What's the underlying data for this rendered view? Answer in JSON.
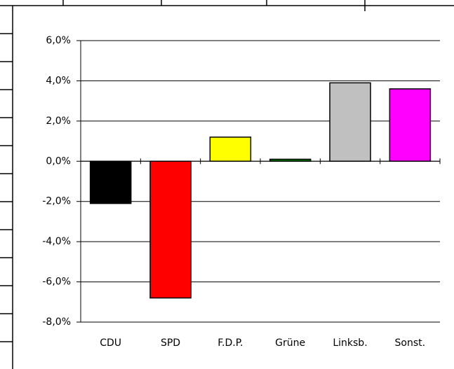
{
  "chart_data": {
    "type": "bar",
    "categories": [
      "CDU",
      "SPD",
      "F.D.P.",
      "Grüne",
      "Linksb.",
      "Sonst."
    ],
    "values": [
      -2.1,
      -6.8,
      1.2,
      0.1,
      3.9,
      3.6
    ],
    "colors": [
      "#000000",
      "#ff0000",
      "#ffff00",
      "#008000",
      "#c0c0c0",
      "#ff00ff"
    ],
    "ylim": [
      -8,
      6
    ],
    "yticks": [
      {
        "value": -8,
        "label": "-8,0%"
      },
      {
        "value": -6,
        "label": "-6,0%"
      },
      {
        "value": -4,
        "label": "-4,0%"
      },
      {
        "value": -2,
        "label": "-2,0%"
      },
      {
        "value": 0,
        "label": "0,0%"
      },
      {
        "value": 2,
        "label": "2,0%"
      },
      {
        "value": 4,
        "label": "4,0%"
      },
      {
        "value": 6,
        "label": "6,0%"
      }
    ],
    "grid": true
  }
}
